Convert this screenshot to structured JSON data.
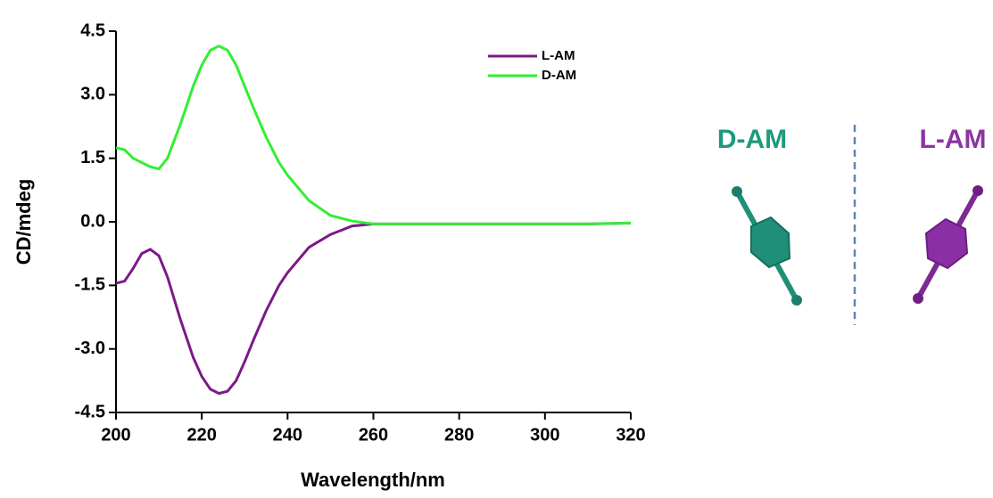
{
  "chart_data": {
    "type": "line",
    "xlabel": "Wavelength/nm",
    "ylabel": "CD/mdeg",
    "x": [
      200,
      202,
      204,
      206,
      208,
      210,
      212,
      215,
      218,
      220,
      222,
      224,
      226,
      228,
      230,
      232,
      235,
      238,
      240,
      245,
      250,
      255,
      260,
      265,
      270,
      280,
      290,
      300,
      310,
      320
    ],
    "series": [
      {
        "name": "L-AM",
        "color": "#7b1a86",
        "values": [
          -1.45,
          -1.4,
          -1.1,
          -0.75,
          -0.65,
          -0.8,
          -1.3,
          -2.3,
          -3.2,
          -3.65,
          -3.95,
          -4.05,
          -4.0,
          -3.75,
          -3.3,
          -2.8,
          -2.1,
          -1.5,
          -1.2,
          -0.6,
          -0.3,
          -0.1,
          -0.05,
          -0.05,
          -0.05,
          -0.05,
          -0.05,
          -0.05,
          -0.05,
          -0.03
        ]
      },
      {
        "name": "D-AM",
        "color": "#33ee33",
        "values": [
          1.75,
          1.7,
          1.5,
          1.4,
          1.3,
          1.25,
          1.5,
          2.3,
          3.2,
          3.7,
          4.05,
          4.15,
          4.05,
          3.7,
          3.2,
          2.7,
          2.0,
          1.4,
          1.1,
          0.5,
          0.15,
          0.02,
          -0.05,
          -0.05,
          -0.05,
          -0.05,
          -0.05,
          -0.05,
          -0.05,
          -0.03
        ]
      }
    ],
    "xlim": [
      200,
      320
    ],
    "xticks": [
      200,
      220,
      240,
      260,
      280,
      300,
      320
    ],
    "ylim": [
      -4.5,
      4.5
    ],
    "yticks": [
      -4.5,
      {
        "value": -3,
        "label": "-3.0"
      },
      -1.5,
      {
        "value": 0,
        "label": "0.0"
      },
      1.5,
      {
        "value": 3,
        "label": "3.0"
      },
      4.5
    ],
    "legend": "upper right",
    "grid": false
  },
  "diagram": {
    "left_label": "D-AM",
    "right_label": "L-AM"
  }
}
